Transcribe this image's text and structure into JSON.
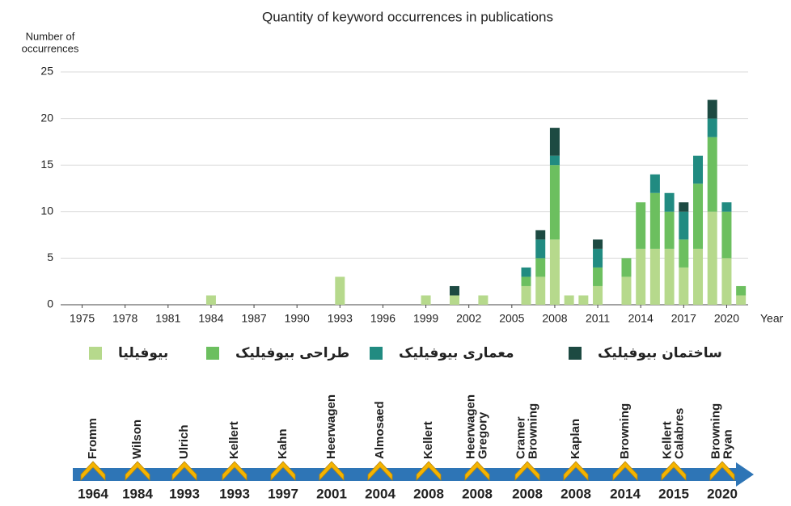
{
  "chart_data": {
    "type": "stacked-bar",
    "title": "Quantity of keyword occurrences in publications",
    "ylabel": [
      "Number of",
      "occurrences"
    ],
    "xlabel": "Year",
    "x": [
      1984,
      1993,
      1999,
      2001,
      2003,
      2006,
      2007,
      2008,
      2009,
      2010,
      2011,
      2013,
      2014,
      2015,
      2016,
      2017,
      2018,
      2019,
      2020,
      2021
    ],
    "series": [
      {
        "name": "بیوفیلیا",
        "color": "#b6d98c",
        "values": [
          1,
          3,
          1,
          1,
          1,
          2,
          3,
          7,
          1,
          1,
          2,
          3,
          6,
          6,
          6,
          4,
          6,
          10,
          5,
          1
        ]
      },
      {
        "name": "طراحی بیوفیلیک",
        "color": "#6cbf5f",
        "values": [
          0,
          0,
          0,
          0,
          0,
          1,
          2,
          8,
          0,
          0,
          2,
          2,
          5,
          6,
          4,
          3,
          7,
          8,
          5,
          1
        ]
      },
      {
        "name": "معماری بیوفیلیک",
        "color": "#218b81",
        "values": [
          0,
          0,
          0,
          0,
          0,
          1,
          2,
          1,
          0,
          0,
          2,
          0,
          0,
          2,
          2,
          3,
          3,
          2,
          1,
          0
        ]
      },
      {
        "name": "ساختمان بیوفیلیک",
        "color": "#1d4a42",
        "values": [
          0,
          0,
          0,
          1,
          0,
          0,
          1,
          3,
          0,
          0,
          1,
          0,
          0,
          0,
          0,
          1,
          0,
          2,
          0,
          0
        ]
      }
    ],
    "xlim": [
      1973.5,
      2021.5
    ],
    "xticks": [
      1975,
      1978,
      1981,
      1984,
      1987,
      1990,
      1993,
      1996,
      1999,
      2002,
      2005,
      2008,
      2011,
      2014,
      2017,
      2020
    ],
    "ylim": [
      0,
      25
    ],
    "yticks": [
      0,
      5,
      10,
      15,
      20,
      25
    ],
    "grid": true
  },
  "timeline": {
    "events": [
      {
        "names": [
          "Fromm"
        ],
        "year": "1964"
      },
      {
        "names": [
          "Wilson"
        ],
        "year": "1984"
      },
      {
        "names": [
          "Ulrich"
        ],
        "year": "1993"
      },
      {
        "names": [
          "Kellert"
        ],
        "year": "1993"
      },
      {
        "names": [
          "Kahn"
        ],
        "year": "1997"
      },
      {
        "names": [
          "Heerwagen"
        ],
        "year": "2001"
      },
      {
        "names": [
          "Almosaed"
        ],
        "year": "2004"
      },
      {
        "names": [
          "Kellert"
        ],
        "year": "2008"
      },
      {
        "names": [
          "Heerwagen",
          "Gregory"
        ],
        "year": "2008"
      },
      {
        "names": [
          "Cramer",
          "Browning"
        ],
        "year": "2008"
      },
      {
        "names": [
          "Kaplan"
        ],
        "year": "2008"
      },
      {
        "names": [
          "Browning"
        ],
        "year": "2014"
      },
      {
        "names": [
          "Kellert",
          "Calabres"
        ],
        "year": "2015"
      },
      {
        "names": [
          "Browning",
          "Ryan"
        ],
        "year": "2020"
      }
    ]
  }
}
